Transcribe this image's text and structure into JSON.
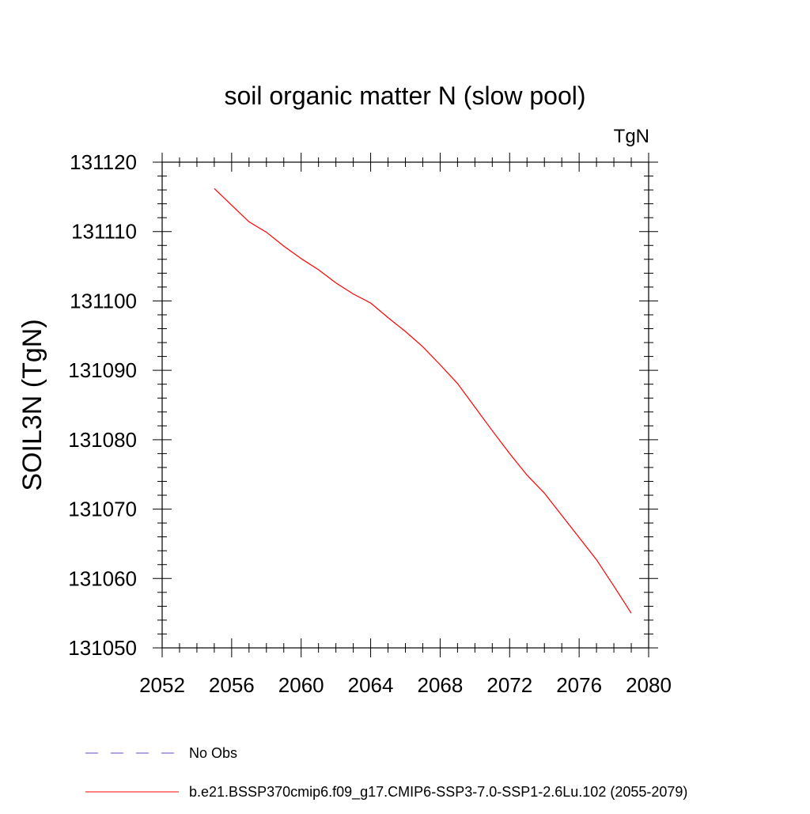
{
  "chart_data": {
    "type": "line",
    "title": "soil organic matter N (slow pool)",
    "units": "TgN",
    "xlabel": "",
    "ylabel": "SOIL3N  (TgN)",
    "xlim": [
      2052,
      2080
    ],
    "ylim": [
      131050,
      131120
    ],
    "x_ticks": [
      "2052",
      "2056",
      "2060",
      "2064",
      "2068",
      "2072",
      "2076",
      "2080"
    ],
    "y_ticks": [
      "131050",
      "131060",
      "131070",
      "131080",
      "131090",
      "131100",
      "131110",
      "131120"
    ],
    "grid": false,
    "legend_placement": "bottom",
    "series": [
      {
        "name": "No Obs",
        "color": "#5b4fd8",
        "style": "dashed",
        "x": [],
        "values": []
      },
      {
        "name": "b.e21.BSSP370cmip6.f09_g17.CMIP6-SSP3-7.0-SSP1-2.6Lu.102 (2055-2079)",
        "color": "#ff0000",
        "style": "solid",
        "x": [
          2055,
          2056,
          2057,
          2058,
          2059,
          2060,
          2061,
          2062,
          2063,
          2064,
          2065,
          2066,
          2067,
          2068,
          2069,
          2070,
          2071,
          2072,
          2073,
          2074,
          2075,
          2076,
          2077,
          2078,
          2079
        ],
        "values": [
          131116.2,
          131113.8,
          131111.4,
          131109.9,
          131107.9,
          131106.1,
          131104.5,
          131102.6,
          131101.0,
          131099.7,
          131097.6,
          131095.6,
          131093.4,
          131090.8,
          131088.1,
          131084.7,
          131081.3,
          131078.0,
          131074.9,
          131072.3,
          131069.1,
          131065.9,
          131062.7,
          131058.9,
          131055.0
        ]
      }
    ]
  }
}
